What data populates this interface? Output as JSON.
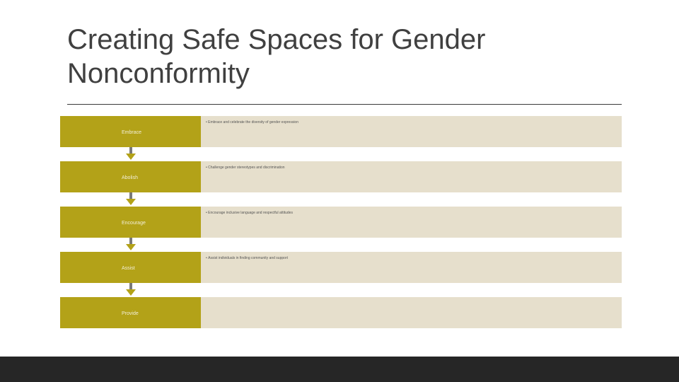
{
  "slide": {
    "title": "Creating Safe Spaces for Gender Nonconformity"
  },
  "steps": [
    {
      "label": "Embrace",
      "text": "Embrace and celebrate the diversity of gender expression"
    },
    {
      "label": "Abolish",
      "text": "Challenge gender stereotypes and discrimination"
    },
    {
      "label": "Encourage",
      "text": "Encourage inclusive language and respectful attitudes"
    },
    {
      "label": "Assist",
      "text": "Assist individuals in finding community and support"
    },
    {
      "label": "Provide",
      "text": ""
    }
  ],
  "colors": {
    "box": "#b3a218",
    "panel": "#e6dfcc",
    "footer": "#262626"
  }
}
